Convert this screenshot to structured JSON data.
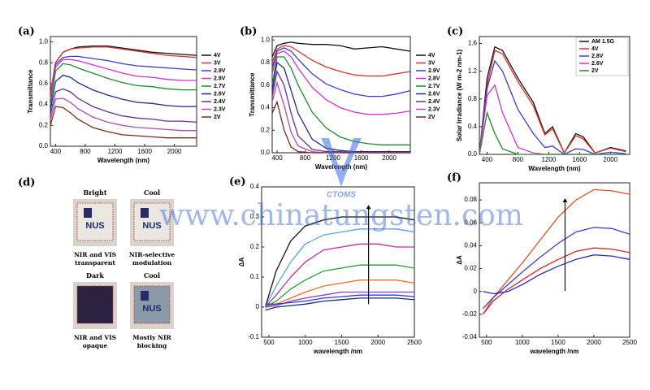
{
  "chart_data": [
    {
      "type": "line",
      "panel": "(a)",
      "xlabel": "Wavelength (nm)",
      "ylabel": "Transmittance",
      "xlim": [
        330,
        2300
      ],
      "ylim": [
        0,
        1.05
      ],
      "xticks": [
        400,
        800,
        1200,
        1600,
        2000
      ],
      "yticks": [
        {
          "value": 0,
          "label": "0.0"
        },
        0.2,
        0.4,
        0.6,
        0.8,
        {
          "value": 1,
          "label": "1.0"
        }
      ],
      "legend": "right-outside",
      "x": [
        330,
        400,
        500,
        600,
        700,
        900,
        1100,
        1300,
        1500,
        1700,
        1900,
        2100,
        2300
      ],
      "series": [
        {
          "name": "4V",
          "color": "#111111",
          "values": [
            0.5,
            0.8,
            0.9,
            0.93,
            0.95,
            0.96,
            0.96,
            0.94,
            0.92,
            0.9,
            0.89,
            0.88,
            0.87
          ]
        },
        {
          "name": "3V",
          "color": "#e0302a",
          "values": [
            0.5,
            0.8,
            0.9,
            0.93,
            0.94,
            0.95,
            0.95,
            0.93,
            0.91,
            0.89,
            0.87,
            0.86,
            0.85
          ]
        },
        {
          "name": "2.9V",
          "color": "#3a3ad8",
          "values": [
            0.45,
            0.78,
            0.85,
            0.86,
            0.86,
            0.84,
            0.82,
            0.79,
            0.77,
            0.76,
            0.75,
            0.74,
            0.73
          ]
        },
        {
          "name": "2.8V",
          "color": "#d431c8",
          "values": [
            0.45,
            0.76,
            0.83,
            0.83,
            0.82,
            0.78,
            0.74,
            0.7,
            0.67,
            0.66,
            0.64,
            0.63,
            0.63
          ]
        },
        {
          "name": "2.7V",
          "color": "#1f8a2a",
          "values": [
            0.4,
            0.72,
            0.79,
            0.78,
            0.75,
            0.7,
            0.65,
            0.61,
            0.58,
            0.57,
            0.55,
            0.54,
            0.54
          ]
        },
        {
          "name": "2.6V",
          "color": "#1d2a8a",
          "values": [
            0.35,
            0.62,
            0.68,
            0.66,
            0.61,
            0.54,
            0.49,
            0.45,
            0.42,
            0.41,
            0.39,
            0.38,
            0.38
          ]
        },
        {
          "name": "2.4V",
          "color": "#6a2a9a",
          "values": [
            0.3,
            0.52,
            0.55,
            0.52,
            0.46,
            0.38,
            0.33,
            0.29,
            0.27,
            0.26,
            0.24,
            0.24,
            0.23
          ]
        },
        {
          "name": "2.3V",
          "color": "#b04ab8",
          "values": [
            0.25,
            0.45,
            0.46,
            0.42,
            0.36,
            0.28,
            0.23,
            0.2,
            0.18,
            0.17,
            0.16,
            0.15,
            0.15
          ]
        },
        {
          "name": "2V",
          "color": "#7a2a1a",
          "values": [
            0.2,
            0.38,
            0.37,
            0.32,
            0.26,
            0.18,
            0.14,
            0.11,
            0.1,
            0.09,
            0.08,
            0.08,
            0.08
          ]
        }
      ]
    },
    {
      "type": "line",
      "panel": "(b)",
      "xlabel": "Wavelength (nm)",
      "ylabel": "Transmittance",
      "xlim": [
        330,
        2300
      ],
      "ylim": [
        0,
        1.03
      ],
      "xticks": [
        400,
        800,
        1200,
        1600,
        2000
      ],
      "yticks": [
        {
          "value": 0,
          "label": "0.0"
        },
        0.2,
        0.4,
        0.6,
        0.8,
        {
          "value": 1,
          "label": "1.0"
        }
      ],
      "legend": "right-outside",
      "x": [
        330,
        400,
        500,
        600,
        700,
        900,
        1100,
        1300,
        1500,
        1700,
        1900,
        2100,
        2300
      ],
      "series": [
        {
          "name": "4V",
          "color": "#111111",
          "values": [
            0.85,
            0.95,
            0.97,
            0.98,
            0.97,
            0.96,
            0.96,
            0.95,
            0.92,
            0.93,
            0.94,
            0.92,
            0.9
          ]
        },
        {
          "name": "3V",
          "color": "#e0302a",
          "values": [
            0.8,
            0.92,
            0.95,
            0.94,
            0.9,
            0.82,
            0.76,
            0.72,
            0.69,
            0.68,
            0.68,
            0.7,
            0.72
          ]
        },
        {
          "name": "2.9V",
          "color": "#3a3ad8",
          "values": [
            0.75,
            0.9,
            0.93,
            0.9,
            0.83,
            0.7,
            0.61,
            0.56,
            0.52,
            0.5,
            0.5,
            0.52,
            0.55
          ]
        },
        {
          "name": "2.8V",
          "color": "#d431c8",
          "values": [
            0.7,
            0.88,
            0.9,
            0.85,
            0.75,
            0.58,
            0.47,
            0.4,
            0.36,
            0.34,
            0.34,
            0.35,
            0.37
          ]
        },
        {
          "name": "2.7V",
          "color": "#1f8a2a",
          "values": [
            0.6,
            0.85,
            0.85,
            0.75,
            0.6,
            0.36,
            0.22,
            0.14,
            0.1,
            0.08,
            0.07,
            0.07,
            0.07
          ]
        },
        {
          "name": "2.6V",
          "color": "#1d2a8a",
          "values": [
            0.55,
            0.8,
            0.75,
            0.55,
            0.35,
            0.12,
            0.04,
            0.02,
            0.01,
            0.01,
            0.01,
            0.01,
            0.01
          ]
        },
        {
          "name": "2.4V",
          "color": "#6a2a9a",
          "values": [
            0.5,
            0.72,
            0.6,
            0.35,
            0.15,
            0.03,
            0.01,
            0.01,
            0,
            0,
            0,
            0,
            0
          ]
        },
        {
          "name": "2.3V",
          "color": "#b04ab8",
          "values": [
            0.45,
            0.62,
            0.42,
            0.18,
            0.06,
            0.01,
            0,
            0,
            0,
            0,
            0,
            0,
            0
          ]
        },
        {
          "name": "2V",
          "color": "#7a2a1a",
          "values": [
            0.35,
            0.45,
            0.2,
            0.05,
            0.01,
            0,
            0,
            0,
            0,
            0,
            0,
            0,
            0
          ]
        }
      ]
    },
    {
      "type": "line",
      "panel": "(c)",
      "xlabel": "Wavelength (nm)",
      "ylabel": "Solar Irradiance (W m-2 nm-1)",
      "xlim": [
        300,
        2250
      ],
      "ylim": [
        0,
        1.7
      ],
      "xticks": [
        400,
        800,
        1200,
        1600,
        2000
      ],
      "yticks": [
        {
          "value": 0,
          "label": "0.0"
        },
        0.4,
        0.8,
        1.2,
        1.6
      ],
      "legend": "upper right",
      "x": [
        300,
        400,
        500,
        600,
        800,
        1000,
        1150,
        1250,
        1400,
        1550,
        1650,
        1800,
        2000,
        2200
      ],
      "series": [
        {
          "name": "AM 1.5G",
          "color": "#111111",
          "values": [
            0,
            1.1,
            1.55,
            1.5,
            1.1,
            0.75,
            0.3,
            0.4,
            0.02,
            0.3,
            0.25,
            0.02,
            0.1,
            0.05
          ]
        },
        {
          "name": "4V",
          "color": "#e0302a",
          "values": [
            0,
            1.0,
            1.5,
            1.45,
            1.05,
            0.7,
            0.28,
            0.37,
            0.02,
            0.27,
            0.22,
            0.02,
            0.09,
            0.04
          ]
        },
        {
          "name": "2.8V",
          "color": "#3a3ad8",
          "values": [
            0,
            0.95,
            1.35,
            1.2,
            0.65,
            0.3,
            0.1,
            0.12,
            0,
            0.08,
            0.07,
            0,
            0.03,
            0.01
          ]
        },
        {
          "name": "2.6V",
          "color": "#d431c8",
          "values": [
            0,
            0.85,
            1.0,
            0.6,
            0.1,
            0.02,
            0,
            0,
            0,
            0,
            0,
            0,
            0,
            0
          ]
        },
        {
          "name": "2V",
          "color": "#1f8a2a",
          "values": [
            0,
            0.6,
            0.3,
            0.08,
            0,
            0,
            0,
            0,
            0,
            0,
            0,
            0,
            0,
            0
          ]
        }
      ]
    },
    {
      "type": "line",
      "panel": "(e)",
      "xlabel": "wavelength /nm",
      "ylabel": "ΔA",
      "xlim": [
        400,
        2500
      ],
      "ylim": [
        -0.1,
        0.4
      ],
      "xticks": [
        500,
        1000,
        1500,
        2000,
        2500
      ],
      "yticks": [
        -0.1,
        0,
        0.1,
        0.2,
        0.3,
        0.4
      ],
      "x": [
        450,
        600,
        800,
        1000,
        1250,
        1500,
        1750,
        2000,
        2250,
        2500
      ],
      "series": [
        {
          "color": "#111111",
          "values": [
            0,
            0.12,
            0.22,
            0.27,
            0.29,
            0.3,
            0.3,
            0.3,
            0.3,
            0.29
          ]
        },
        {
          "color": "#5aa0e8",
          "values": [
            0,
            0.07,
            0.15,
            0.21,
            0.24,
            0.25,
            0.26,
            0.26,
            0.26,
            0.25
          ]
        },
        {
          "color": "#c42a9a",
          "values": [
            0,
            0.04,
            0.1,
            0.15,
            0.19,
            0.2,
            0.21,
            0.21,
            0.2,
            0.2
          ]
        },
        {
          "color": "#22a02a",
          "values": [
            0,
            0.02,
            0.06,
            0.09,
            0.12,
            0.13,
            0.14,
            0.14,
            0.14,
            0.13
          ]
        },
        {
          "color": "#f07020",
          "values": [
            0,
            0.01,
            0.03,
            0.05,
            0.07,
            0.08,
            0.09,
            0.09,
            0.09,
            0.08
          ]
        },
        {
          "color": "#8a3ac8",
          "values": [
            0,
            0.005,
            0.02,
            0.03,
            0.04,
            0.05,
            0.05,
            0.05,
            0.05,
            0.05
          ]
        },
        {
          "color": "#2a3ae0",
          "values": [
            0.01,
            0.01,
            0.015,
            0.02,
            0.03,
            0.035,
            0.04,
            0.04,
            0.04,
            0.035
          ]
        },
        {
          "color": "#1a2a7a",
          "values": [
            -0.01,
            0,
            0.005,
            0.01,
            0.02,
            0.025,
            0.03,
            0.03,
            0.03,
            0.025
          ]
        }
      ]
    },
    {
      "type": "line",
      "panel": "(f)",
      "xlabel": "wavelength /nm",
      "ylabel": "ΔA",
      "xlim": [
        400,
        2500
      ],
      "ylim": [
        -0.04,
        0.095
      ],
      "xticks": [
        500,
        1000,
        1500,
        2000,
        2500
      ],
      "yticks": [
        -0.04,
        -0.02,
        0,
        0.02,
        0.04,
        0.06,
        0.08
      ],
      "x": [
        450,
        600,
        800,
        1000,
        1250,
        1500,
        1750,
        2000,
        2250,
        2500
      ],
      "series": [
        {
          "color": "#e8501a",
          "values": [
            -0.02,
            -0.005,
            0.01,
            0.025,
            0.045,
            0.065,
            0.08,
            0.089,
            0.088,
            0.085
          ]
        },
        {
          "color": "#3a3ad8",
          "values": [
            -0.015,
            -0.005,
            0.006,
            0.017,
            0.03,
            0.042,
            0.052,
            0.056,
            0.055,
            0.05
          ]
        },
        {
          "color": "#d0282a",
          "values": [
            -0.02,
            -0.008,
            0.002,
            0.01,
            0.02,
            0.028,
            0.035,
            0.038,
            0.037,
            0.034
          ]
        },
        {
          "color": "#2a2ab8",
          "values": [
            0,
            -0.002,
            0,
            0.006,
            0.015,
            0.022,
            0.028,
            0.032,
            0.031,
            0.028
          ]
        }
      ]
    }
  ],
  "photo_panel": {
    "panel": "(d)",
    "items": [
      {
        "heading": "Bright",
        "logo": "NUS",
        "caption": [
          "NIR and VIS",
          "transparent"
        ]
      },
      {
        "heading": "Cool",
        "logo": "NUS",
        "caption": [
          "NIR-selective",
          "modulation"
        ]
      },
      {
        "heading": "Dark",
        "caption": [
          "NIR and VIS",
          "opaque"
        ]
      },
      {
        "heading": "Cool",
        "logo": "NUS",
        "caption": [
          "Mostly NIR",
          "blocking"
        ]
      }
    ]
  },
  "watermark": {
    "text": "www.chinatungsten.com",
    "logo": "CTOMS"
  }
}
